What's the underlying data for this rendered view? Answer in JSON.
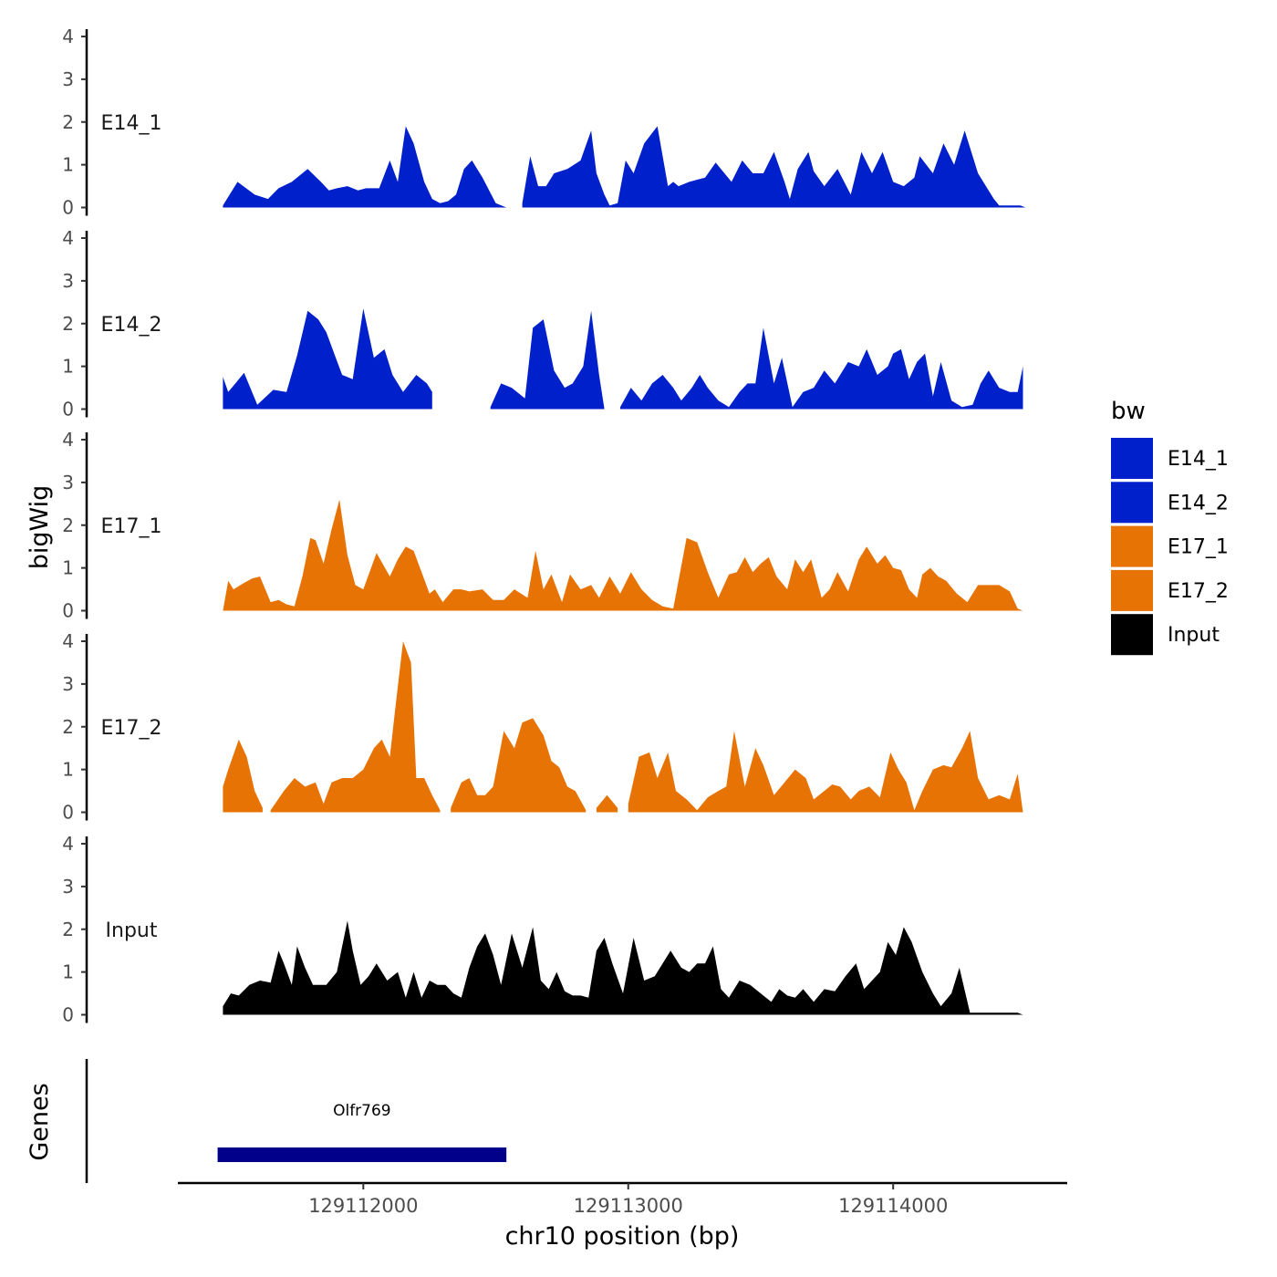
{
  "chart_data": {
    "type": "area",
    "ylabel": "bigWig",
    "xlabel": "chr10 position (bp)",
    "genes_label": "Genes",
    "xlim": [
      129111300,
      129114650
    ],
    "ylim": [
      0,
      4
    ],
    "x_ticks": [
      129112000,
      129113000,
      129114000
    ],
    "x_tick_labels": [
      "129112000",
      "129113000",
      "129114000"
    ],
    "y_ticks": [
      0,
      1,
      2,
      3,
      4
    ],
    "y_tick_labels": [
      "0",
      "1",
      "2",
      "3",
      "4"
    ],
    "legend": {
      "title": "bw",
      "position": "right",
      "entries": [
        {
          "name": "E14_1",
          "color": "#0020CC"
        },
        {
          "name": "E14_2",
          "color": "#0020CC"
        },
        {
          "name": "E17_1",
          "color": "#E87305"
        },
        {
          "name": "E17_2",
          "color": "#E87305"
        },
        {
          "name": "Input",
          "color": "#000000"
        }
      ]
    },
    "series": [
      {
        "name": "E14_1",
        "color": "#0020CC",
        "x": [
          129111470,
          129111525,
          129111590,
          129111640,
          129111680,
          129111730,
          129111790,
          129111840,
          129111870,
          129111900,
          129111940,
          129111980,
          129112010,
          129112060,
          129112100,
          129112130,
          129112160,
          129112190,
          129112230,
          129112260,
          129112290,
          129112320,
          129112350,
          129112380,
          129112410,
          129112450,
          129112500,
          129112540,
          129112560,
          "NA",
          129112600,
          129112630,
          129112660,
          129112690,
          129112720,
          129112770,
          129112820,
          129112860,
          129112880,
          129112910,
          129112930,
          129112960,
          129112990,
          129113020,
          129113060,
          129113110,
          129113150,
          129113170,
          129113190,
          129113230,
          129113290,
          129113330,
          129113390,
          129113430,
          129113470,
          129113510,
          129113550,
          129113590,
          129113610,
          129113640,
          129113680,
          129113700,
          129113740,
          129113790,
          129113840,
          129113880,
          129113920,
          129113960,
          129114000,
          129114040,
          129114080,
          129114100,
          129114150,
          129114190,
          129114230,
          129114270,
          129114320,
          129114350,
          129114380,
          129114400,
          129114440,
          129114480,
          129114500
        ],
        "values": [
          0.05,
          0.6,
          0.3,
          0.2,
          0.45,
          0.6,
          0.9,
          0.6,
          0.4,
          0.45,
          0.5,
          0.4,
          0.45,
          0.45,
          1.1,
          0.6,
          1.9,
          1.5,
          0.6,
          0.2,
          0.1,
          0.15,
          0.3,
          0.9,
          1.1,
          0.7,
          0.1,
          0.0,
          0.0,
          null,
          0.1,
          1.2,
          0.5,
          0.5,
          0.8,
          0.9,
          1.1,
          1.8,
          0.8,
          0.3,
          0.05,
          0.1,
          1.1,
          0.8,
          1.5,
          1.9,
          0.5,
          0.6,
          0.5,
          0.6,
          0.7,
          1.05,
          0.6,
          1.1,
          0.8,
          0.8,
          1.3,
          0.6,
          0.2,
          0.9,
          1.3,
          0.85,
          0.5,
          0.9,
          0.3,
          1.3,
          0.8,
          1.3,
          0.6,
          0.5,
          0.7,
          1.2,
          0.8,
          1.5,
          1.0,
          1.8,
          0.8,
          0.5,
          0.2,
          0.05,
          0.05,
          0.05,
          0.0
        ]
      },
      {
        "name": "E14_2",
        "color": "#0020CC",
        "x": [
          129111470,
          129111490,
          129111550,
          129111600,
          129111660,
          129111710,
          129111750,
          129111790,
          129111830,
          129111860,
          129111890,
          129111920,
          129111960,
          129112000,
          129112040,
          129112080,
          129112110,
          129112150,
          129112200,
          129112240,
          129112260,
          "NA",
          129112480,
          129112520,
          129112560,
          129112610,
          129112640,
          129112680,
          129112720,
          129112760,
          129112790,
          129112830,
          129112860,
          129112890,
          129112910,
          "NA",
          129112970,
          129113010,
          129113050,
          129113090,
          129113130,
          129113170,
          129113200,
          129113240,
          129113270,
          129113300,
          129113340,
          129113380,
          129113420,
          129113450,
          129113480,
          129113510,
          129113550,
          129113580,
          129113620,
          129113660,
          129113700,
          129113740,
          129113780,
          129113830,
          129113870,
          129113900,
          129113940,
          129113980,
          129114000,
          129114030,
          129114060,
          129114090,
          129114120,
          129114150,
          129114180,
          129114220,
          129114260,
          129114300,
          129114330,
          129114360,
          129114400,
          129114440,
          129114470,
          129114490
        ],
        "values": [
          0.75,
          0.4,
          0.85,
          0.1,
          0.45,
          0.4,
          1.25,
          2.3,
          2.1,
          1.8,
          1.3,
          0.8,
          0.7,
          2.35,
          1.2,
          1.4,
          0.8,
          0.4,
          0.8,
          0.6,
          0.4,
          null,
          0.05,
          0.6,
          0.5,
          0.25,
          1.9,
          2.1,
          0.9,
          0.5,
          0.6,
          1.0,
          2.3,
          0.8,
          0.0,
          null,
          0.05,
          0.5,
          0.2,
          0.6,
          0.8,
          0.5,
          0.2,
          0.5,
          0.8,
          0.5,
          0.2,
          0.05,
          0.4,
          0.6,
          0.6,
          1.9,
          0.6,
          1.2,
          0.05,
          0.4,
          0.5,
          0.9,
          0.6,
          1.1,
          1.0,
          1.4,
          0.8,
          1.0,
          1.3,
          1.4,
          0.7,
          1.1,
          1.3,
          0.3,
          1.1,
          0.2,
          0.05,
          0.1,
          0.6,
          0.9,
          0.5,
          0.4,
          0.4,
          1.0
        ]
      },
      {
        "name": "E17_1",
        "color": "#E87305",
        "x": [
          129111470,
          129111490,
          129111510,
          129111550,
          129111580,
          129111610,
          129111650,
          129111680,
          129111710,
          129111740,
          129111770,
          129111800,
          129111820,
          129111850,
          129111880,
          129111910,
          129111940,
          129111970,
          129112000,
          129112050,
          129112100,
          129112130,
          129112160,
          129112190,
          129112220,
          129112250,
          129112270,
          129112300,
          129112340,
          129112370,
          129112400,
          129112450,
          129112490,
          129112530,
          129112570,
          129112620,
          129112650,
          129112680,
          129112710,
          129112750,
          129112780,
          129112820,
          129112860,
          129112890,
          129112930,
          129112970,
          129113010,
          129113050,
          129113090,
          129113130,
          129113170,
          129113220,
          129113260,
          129113300,
          129113340,
          129113380,
          129113410,
          129113440,
          129113470,
          129113500,
          129113530,
          129113560,
          129113600,
          129113630,
          129113660,
          129113690,
          129113730,
          129113760,
          129113790,
          129113830,
          129113870,
          129113900,
          129113940,
          129113970,
          129114000,
          129114030,
          129114060,
          129114090,
          129114110,
          129114140,
          129114170,
          129114200,
          129114240,
          129114280,
          129114320,
          129114360,
          129114400,
          129114440,
          129114470,
          129114490
        ],
        "values": [
          0.0,
          0.7,
          0.5,
          0.65,
          0.75,
          0.8,
          0.2,
          0.25,
          0.15,
          0.1,
          0.8,
          1.7,
          1.65,
          1.1,
          1.9,
          2.6,
          1.3,
          0.6,
          0.5,
          1.35,
          0.8,
          1.2,
          1.5,
          1.4,
          0.9,
          0.4,
          0.5,
          0.2,
          0.5,
          0.5,
          0.45,
          0.5,
          0.25,
          0.25,
          0.5,
          0.3,
          1.4,
          0.5,
          0.85,
          0.2,
          0.85,
          0.5,
          0.6,
          0.3,
          0.8,
          0.4,
          0.9,
          0.5,
          0.25,
          0.1,
          0.05,
          1.7,
          1.6,
          0.9,
          0.3,
          0.85,
          0.9,
          1.25,
          0.9,
          1.1,
          1.25,
          0.8,
          0.5,
          1.2,
          0.9,
          1.2,
          0.3,
          0.5,
          0.9,
          0.45,
          1.2,
          1.5,
          1.1,
          1.3,
          1.0,
          0.95,
          0.5,
          0.3,
          0.85,
          1.0,
          0.8,
          0.7,
          0.4,
          0.2,
          0.6,
          0.6,
          0.6,
          0.45,
          0.05,
          0.0
        ]
      },
      {
        "name": "E17_2",
        "color": "#E87305",
        "x": [
          129111470,
          129111490,
          129111530,
          129111560,
          129111590,
          129111620,
          "NA",
          129111650,
          129111700,
          129111740,
          129111780,
          129111820,
          129111850,
          129111880,
          129111920,
          129111960,
          129112000,
          129112040,
          129112070,
          129112100,
          129112120,
          129112150,
          129112180,
          129112200,
          129112230,
          129112260,
          129112290,
          "NA",
          129112330,
          129112370,
          129112400,
          129112430,
          129112460,
          129112490,
          129112530,
          129112570,
          129112600,
          129112640,
          129112680,
          129112710,
          129112740,
          129112770,
          129112800,
          129112840,
          "NA",
          129112880,
          129112920,
          129112960,
          "NA",
          129113000,
          129113040,
          129113080,
          129113110,
          129113150,
          129113180,
          129113220,
          129113260,
          129113300,
          129113340,
          129113370,
          129113400,
          129113440,
          129113480,
          129113510,
          129113550,
          129113590,
          129113630,
          129113670,
          129113700,
          129113740,
          129113770,
          129113800,
          129113840,
          129113870,
          129113910,
          129113950,
          129113990,
          129114020,
          129114050,
          129114080,
          129114110,
          129114150,
          129114190,
          129114220,
          129114260,
          129114290,
          129114320,
          129114360,
          129114400,
          129114440,
          129114470,
          129114490
        ],
        "values": [
          0.6,
          1.0,
          1.7,
          1.3,
          0.5,
          0.1,
          null,
          0.05,
          0.5,
          0.8,
          0.6,
          0.7,
          0.2,
          0.7,
          0.8,
          0.8,
          1.0,
          1.5,
          1.7,
          1.3,
          2.4,
          4.0,
          3.5,
          0.8,
          0.8,
          0.4,
          0.05,
          null,
          0.1,
          0.7,
          0.8,
          0.4,
          0.4,
          0.6,
          1.9,
          1.5,
          2.1,
          2.2,
          1.8,
          1.2,
          1.05,
          0.6,
          0.5,
          0.05,
          null,
          0.1,
          0.4,
          0.1,
          null,
          0.2,
          1.3,
          1.4,
          0.8,
          1.4,
          0.5,
          0.3,
          0.05,
          0.35,
          0.5,
          0.6,
          1.9,
          0.6,
          1.5,
          1.1,
          0.4,
          0.7,
          1.0,
          0.8,
          0.3,
          0.5,
          0.65,
          0.6,
          0.3,
          0.5,
          0.6,
          0.35,
          1.4,
          1.0,
          0.7,
          0.05,
          0.5,
          1.0,
          1.1,
          1.05,
          1.5,
          1.9,
          0.8,
          0.3,
          0.4,
          0.3,
          0.9,
          0.0
        ]
      },
      {
        "name": "Input",
        "color": "#000000",
        "x": [
          129111470,
          129111500,
          129111530,
          129111570,
          129111610,
          129111650,
          129111680,
          129111700,
          129111730,
          129111750,
          129111780,
          129111810,
          129111840,
          129111860,
          129111900,
          129111940,
          129111960,
          129111990,
          129112020,
          129112050,
          129112090,
          129112130,
          129112160,
          129112190,
          129112220,
          129112250,
          129112280,
          129112310,
          129112340,
          129112370,
          129112400,
          129112430,
          129112460,
          129112490,
          129112520,
          129112560,
          129112600,
          129112640,
          129112670,
          129112700,
          129112730,
          129112760,
          129112790,
          129112820,
          129112850,
          129112880,
          129112910,
          129112940,
          129112980,
          129113020,
          129113060,
          129113100,
          129113130,
          129113160,
          129113200,
          129113230,
          129113260,
          129113290,
          129113320,
          129113350,
          129113380,
          129113420,
          129113460,
          129113500,
          129113540,
          129113570,
          129113600,
          129113630,
          129113660,
          129113700,
          129113740,
          129113780,
          129113820,
          129113860,
          129113890,
          129113920,
          129113950,
          129113980,
          129114010,
          129114040,
          129114070,
          129114110,
          129114150,
          129114180,
          129114220,
          129114250,
          129114290,
          129114320,
          129114350,
          129114390,
          129114430,
          129114470,
          129114490
        ],
        "values": [
          0.2,
          0.5,
          0.45,
          0.7,
          0.8,
          0.75,
          1.5,
          1.2,
          0.7,
          1.6,
          1.1,
          0.7,
          0.7,
          0.7,
          1.0,
          2.2,
          1.5,
          0.7,
          0.9,
          1.2,
          0.8,
          1.0,
          0.4,
          1.0,
          0.4,
          0.8,
          0.7,
          0.7,
          0.5,
          0.4,
          1.1,
          1.6,
          1.9,
          1.4,
          0.7,
          1.9,
          1.1,
          2.05,
          0.8,
          0.6,
          1.0,
          0.55,
          0.45,
          0.45,
          0.4,
          1.5,
          1.8,
          1.2,
          0.5,
          1.8,
          0.8,
          0.9,
          1.2,
          1.5,
          1.1,
          1.0,
          1.2,
          1.2,
          1.6,
          0.6,
          0.4,
          0.8,
          0.7,
          0.5,
          0.3,
          0.6,
          0.45,
          0.4,
          0.6,
          0.3,
          0.6,
          0.55,
          0.9,
          1.2,
          0.6,
          0.8,
          1.0,
          1.7,
          1.4,
          2.05,
          1.7,
          1.0,
          0.5,
          0.2,
          0.5,
          1.1,
          0.05,
          0.05,
          0.05,
          0.05,
          0.05,
          0.05,
          0.0
        ]
      }
    ],
    "genes": [
      {
        "name": "Olfr769",
        "start": 129111450,
        "end": 129112540,
        "color": "#00008B"
      }
    ]
  }
}
